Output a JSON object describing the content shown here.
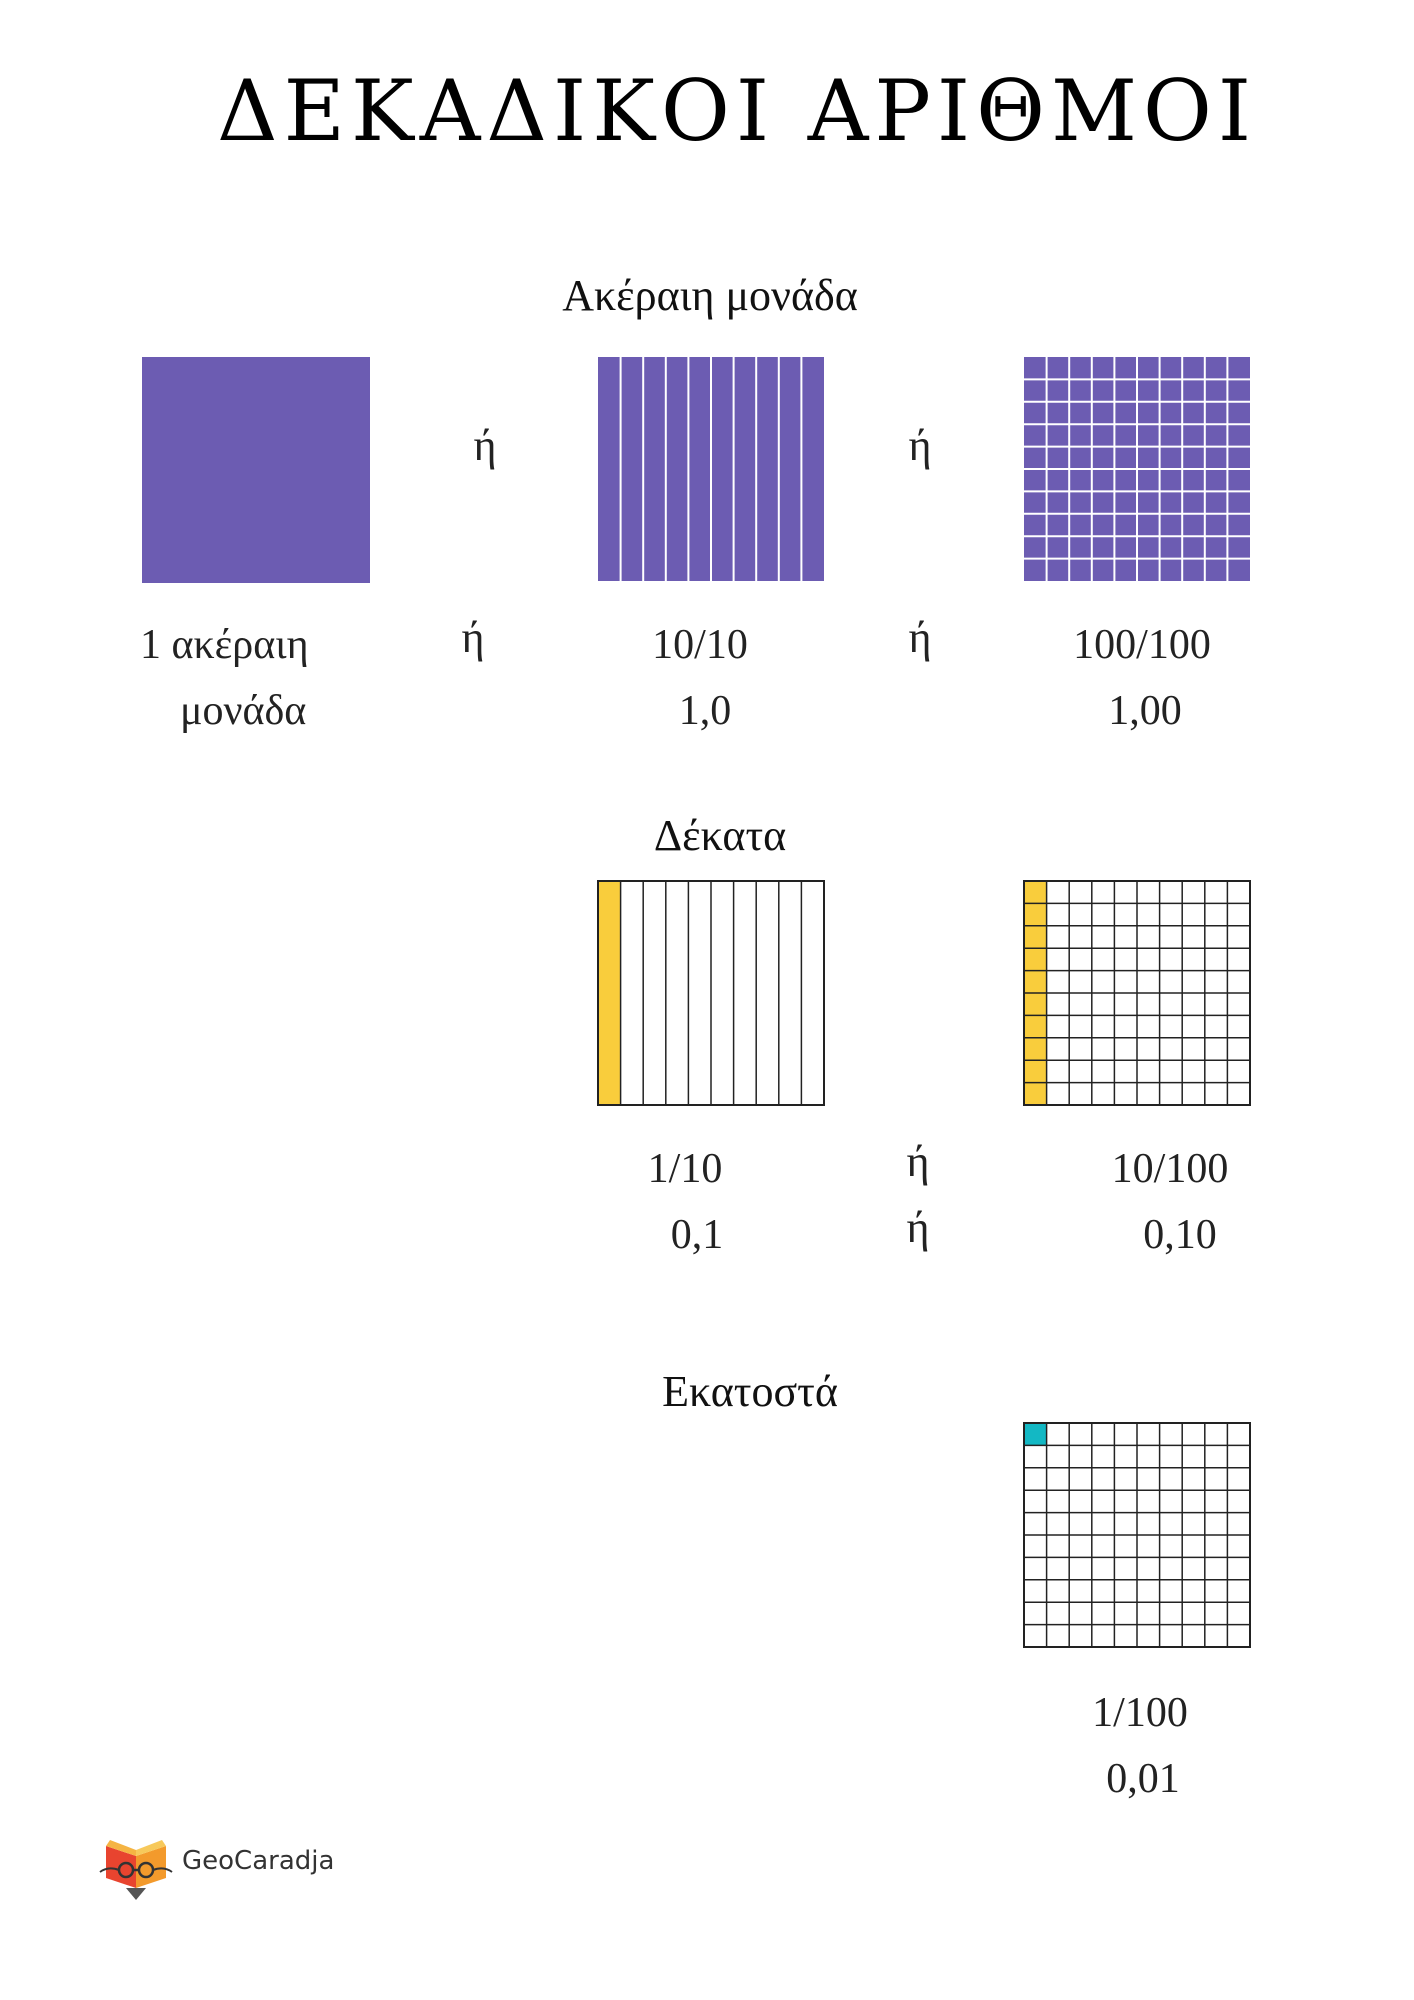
{
  "title": "ΔΕΚΑΔΙΚΟΙ ΑΡΙΘΜΟΙ",
  "colors": {
    "purple": "#6c5cb2",
    "yellow": "#f9cd3c",
    "teal": "#13b8c4",
    "grid": "#222222"
  },
  "sections": {
    "whole": {
      "heading": "Ακέραιη μονάδα",
      "or": "ή",
      "item1": {
        "line1": "1 ακέραιη",
        "line2": "μονάδα"
      },
      "item2": {
        "fraction": "10/10",
        "decimal": "1,0"
      },
      "item3": {
        "fraction": "100/100",
        "decimal": "1,00"
      }
    },
    "tenths": {
      "heading": "Δέκατα",
      "or": "ή",
      "item1": {
        "fraction": "1/10",
        "decimal": "0,1"
      },
      "item2": {
        "fraction": "10/100",
        "decimal": "0,10"
      },
      "shaded_item1": 0.1,
      "shaded_item2": 0.1
    },
    "hundredths": {
      "heading": "Εκατοστά",
      "item1": {
        "fraction": "1/100",
        "decimal": "0,01"
      },
      "shaded_item1": 0.01
    }
  },
  "logo": {
    "text": "GeoCaradja",
    "icon": "book-glasses-logo"
  }
}
